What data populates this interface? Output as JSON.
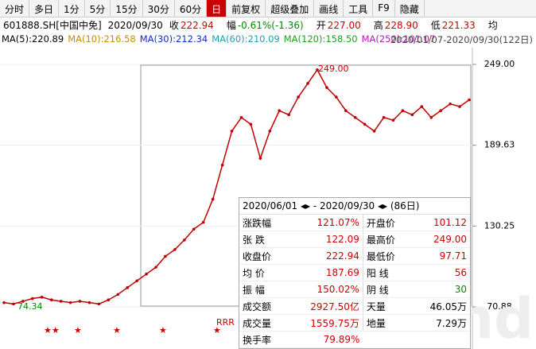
{
  "toolbar": {
    "items": [
      "分时",
      "多日",
      "1分",
      "5分",
      "15分",
      "30分",
      "60分",
      "日",
      "前复权",
      "超级叠加",
      "画线",
      "工具",
      "F9",
      "隐藏"
    ],
    "active": 7
  },
  "info": {
    "code": "601888.SH[中国中免]",
    "date": "2020/09/30",
    "fields": [
      {
        "label": "收",
        "value": "222.94"
      },
      {
        "label": "幅",
        "value": "-0.61%(-1.36)"
      },
      {
        "label": "开",
        "value": "227.00"
      },
      {
        "label": "高",
        "value": "228.90"
      },
      {
        "label": "低",
        "value": "221.33"
      },
      {
        "label": "均",
        "value": ""
      }
    ]
  },
  "ma_legend": [
    {
      "text": "MA(5):220.89",
      "color": "#000000"
    },
    {
      "text": "MA(10):216.58",
      "color": "#c09000"
    },
    {
      "text": "MA(30):212.34",
      "color": "#1030c0"
    },
    {
      "text": "MA(60):210.09",
      "color": "#20a0b0"
    },
    {
      "text": "MA(120):158.50",
      "color": "#20a020"
    },
    {
      "text": "MA(250):101.07",
      "color": "#b020b0"
    }
  ],
  "range_text": "2020/01/07-2020/09/30(122日)",
  "chart_data": {
    "type": "line",
    "color": "#c00000",
    "values": [
      74,
      73,
      75,
      77,
      78,
      76,
      75,
      74,
      75,
      74,
      73,
      76,
      80,
      85,
      90,
      95,
      100,
      108,
      113,
      120,
      128,
      133,
      150,
      175,
      200,
      210,
      205,
      180,
      200,
      215,
      212,
      225,
      235,
      245,
      232,
      225,
      215,
      210,
      205,
      200,
      210,
      208,
      215,
      212,
      218,
      210,
      215,
      220,
      218,
      222.94
    ],
    "ylim": [
      70.88,
      249
    ],
    "yticks": [
      {
        "value": 249,
        "label": "249.00"
      },
      {
        "value": 189.63,
        "label": "189.63"
      },
      {
        "value": 130.25,
        "label": "130.25"
      },
      {
        "value": 70.88,
        "label": "70.88"
      }
    ],
    "annotations": [
      "249.00",
      "74.34",
      "RRR"
    ]
  },
  "stats": {
    "header": "2020/06/01 ◂▸ - 2020/09/30 ◂▸ (86日)",
    "rows": [
      [
        "涨跌幅",
        "121.07%",
        "开盘价",
        "101.12"
      ],
      [
        "张  跌",
        "122.09",
        "最高价",
        "249.00"
      ],
      [
        "收盘价",
        "222.94",
        "最低价",
        "97.71"
      ],
      [
        "均  价",
        "187.69",
        "阳  线",
        "56"
      ],
      [
        "振  幅",
        "150.02%",
        "阴  线",
        "30"
      ],
      [
        "成交额",
        "2927.50亿",
        "天量",
        "46.05万"
      ],
      [
        "成交量",
        "1559.75万",
        "地量",
        "7.29万"
      ],
      [
        "换手率",
        "79.89%"
      ]
    ]
  },
  "watermark": "Wind"
}
